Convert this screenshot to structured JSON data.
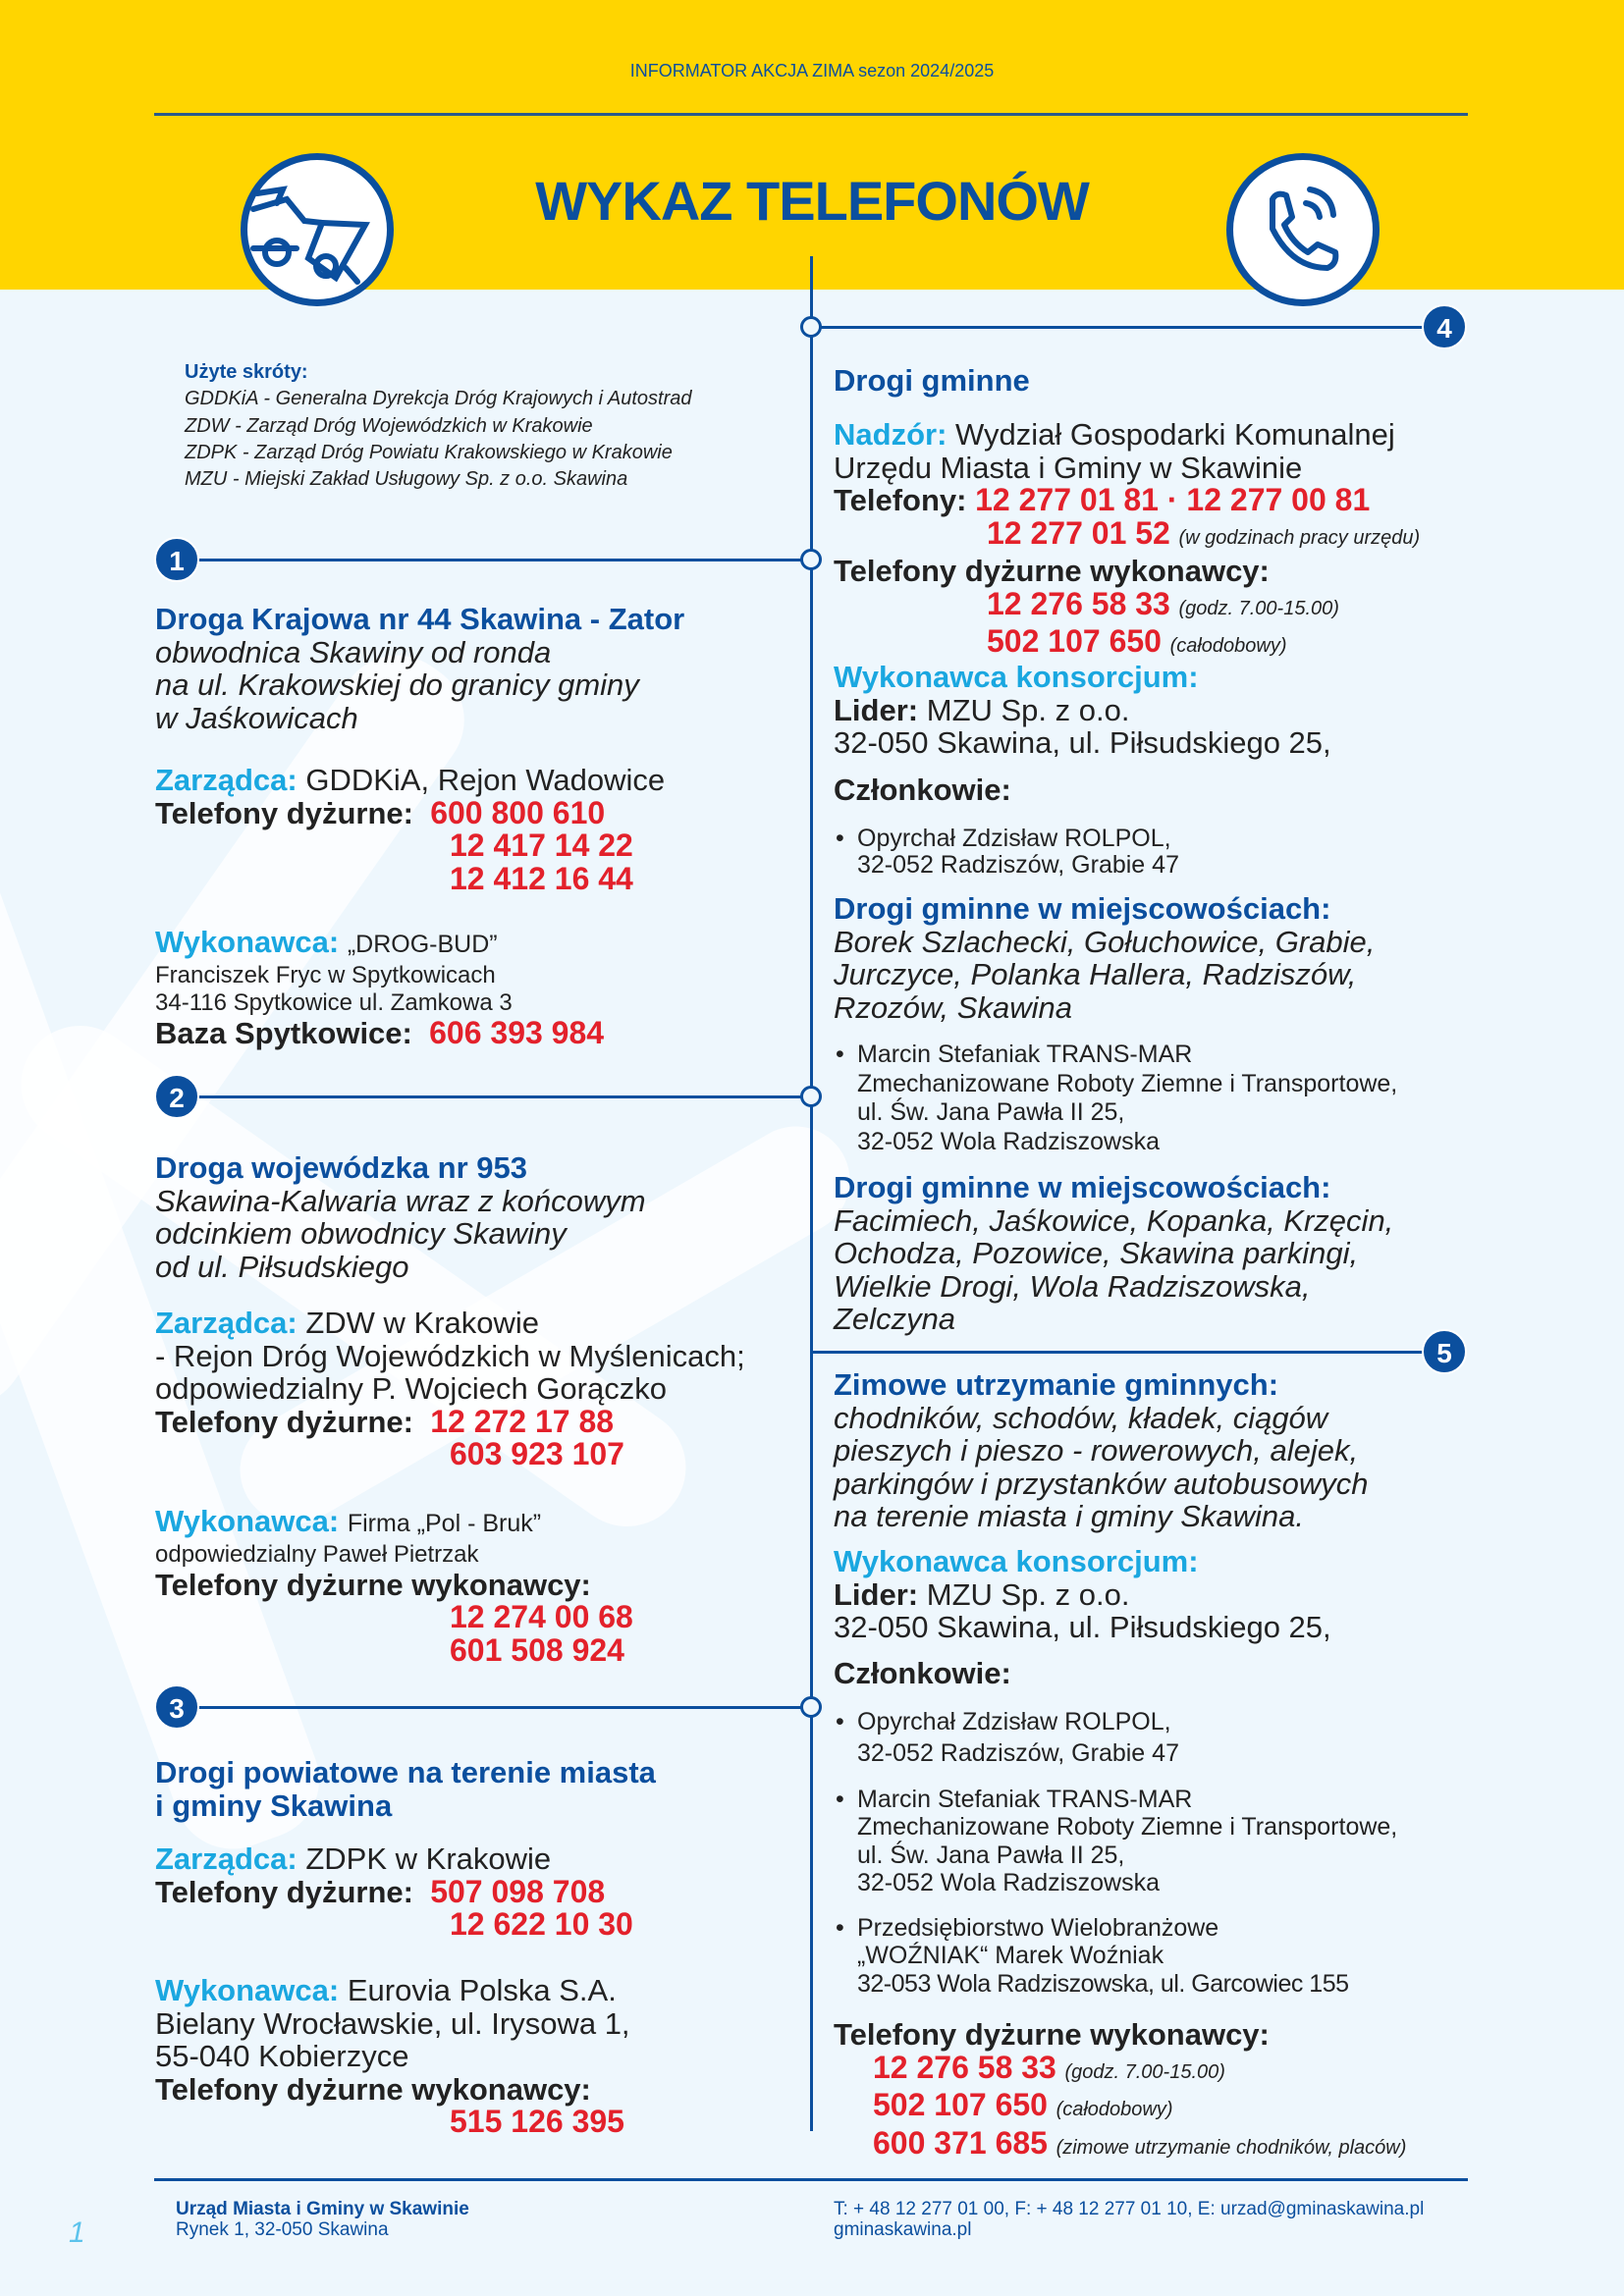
{
  "header": {
    "top_text": "INFORMATOR AKCJA ZIMA sezon 2024/2025",
    "title": "WYKAZ TELEFONÓW"
  },
  "colors": {
    "yellow": "#ffd500",
    "dark_blue": "#0b4f9e",
    "cyan": "#1aa7e0",
    "red": "#e3212b",
    "background": "#eef7fd"
  },
  "icons": {
    "left": "car-accident-icon",
    "right": "phone-ringing-icon"
  },
  "abbrev": {
    "title": "Użyte skróty:",
    "lines": [
      "GDDKiA - Generalna Dyrekcja Dróg Krajowych i Autostrad",
      "ZDW - Zarząd Dróg Wojewódzkich w Krakowie",
      "ZDPK - Zarząd Dróg Powiatu Krakowskiego w Krakowie",
      "MZU - Miejski Zakład Usługowy Sp. z o.o. Skawina"
    ]
  },
  "markers": [
    "1",
    "2",
    "3",
    "4",
    "5"
  ],
  "s1": {
    "title": "Droga Krajowa nr 44 Skawina - Zator",
    "desc": [
      "obwodnica Skawiny od ronda",
      "na ul. Krakowskiej  do granicy gminy",
      "w Jaśkowicach"
    ],
    "zarzadca_label": "Zarządca:",
    "zarzadca": "GDDKiA, Rejon Wadowice",
    "phones_label": "Telefony dyżurne:",
    "phones": [
      "600 800 610",
      "12 417 14 22",
      "12 412 16 44"
    ],
    "wyk_label": "Wykonawca:",
    "wyk": "„DROG-BUD”",
    "wyk_lines": [
      "Franciszek Fryc w Spytkowicach",
      "34-116 Spytkowice ul. Zamkowa 3"
    ],
    "baza_label": "Baza Spytkowice:",
    "baza_phone": "606 393 984"
  },
  "s2": {
    "title": "Droga wojewódzka nr 953",
    "desc": [
      "Skawina-Kalwaria wraz z końcowym",
      "odcinkiem obwodnicy Skawiny",
      "od ul. Piłsudskiego"
    ],
    "zarzadca_label": "Zarządca:",
    "zarzadca": "ZDW w Krakowie",
    "zarzadca_lines": [
      "- Rejon Dróg Wojewódzkich w Myślenicach;",
      "odpowiedzialny P. Wojciech Gorączko"
    ],
    "phones_label": "Telefony dyżurne:",
    "phones": [
      "12 272 17 88",
      "603 923 107"
    ],
    "wyk_label": "Wykonawca:",
    "wyk": "Firma „Pol - Bruk”",
    "wyk_line": "odpowiedzialny Paweł Pietrzak",
    "wyk_phones_label": "Telefony dyżurne wykonawcy:",
    "wyk_phones": [
      "12 274 00 68",
      "601 508 924"
    ]
  },
  "s3": {
    "title": [
      "Drogi powiatowe na terenie miasta",
      "i gminy Skawina"
    ],
    "zarzadca_label": "Zarządca:",
    "zarzadca": "ZDPK w Krakowie",
    "phones_label": "Telefony dyżurne:",
    "phones": [
      "507 098 708",
      "12 622 10 30"
    ],
    "wyk_label": "Wykonawca:",
    "wyk": "Eurovia Polska S.A.",
    "wyk_lines": [
      "Bielany Wrocławskie, ul. Irysowa 1,",
      "55-040 Kobierzyce"
    ],
    "wyk_phones_label": "Telefony dyżurne wykonawcy:",
    "wyk_phone": "515 126 395"
  },
  "s4": {
    "title": "Drogi gminne",
    "nadzor_label": "Nadzór:",
    "nadzor": "Wydział Gospodarki Komunalnej",
    "nadzor_line2": "Urzędu Miasta i Gminy w Skawinie",
    "phones_label": "Telefony:",
    "phones": "12 277 01 81 · 12 277 00 81",
    "phone3": "12 277 01 52",
    "phone3_note": "(w godzinach pracy urzędu)",
    "wyk_phones_label": "Telefony dyżurne wykonawcy:",
    "wyk_phone1": "12 276 58 33",
    "wyk_phone1_note": "(godz. 7.00-15.00)",
    "wyk_phone2": "502 107 650",
    "wyk_phone2_note": "(całodobowy)",
    "kons_label": "Wykonawca konsorcjum:",
    "lider_label": "Lider:",
    "lider": "MZU Sp. z o.o.",
    "lider_addr": "32-050 Skawina, ul. Piłsudskiego 25,",
    "czlonkowie": "Członkowie:",
    "member1": [
      "Opyrchał Zdzisław ROLPOL,",
      "32-052 Radziszów, Grabie 47"
    ],
    "area1_title": "Drogi gminne w miejscowościach:",
    "area1": [
      "Borek Szlachecki, Gołuchowice, Grabie,",
      "Jurczyce,  Polanka Hallera, Radziszów,",
      "Rzozów, Skawina"
    ],
    "member2": [
      "Marcin Stefaniak TRANS-MAR",
      "Zmechanizowane Roboty Ziemne i Transportowe,",
      "ul. Św. Jana Pawła II 25,",
      "32-052 Wola Radziszowska"
    ],
    "area2_title": "Drogi gminne w miejscowościach:",
    "area2": [
      "Facimiech, Jaśkowice, Kopanka, Krzęcin,",
      "Ochodza, Pozowice, Skawina parkingi,",
      "Wielkie Drogi, Wola Radziszowska,",
      "Zelczyna"
    ]
  },
  "s5": {
    "title": "Zimowe utrzymanie gminnych:",
    "desc": [
      "chodników, schodów, kładek, ciągów",
      "pieszych i pieszo - rowerowych, alejek,",
      "parkingów i przystanków autobusowych",
      "na terenie miasta i gminy Skawina."
    ],
    "kons_label": "Wykonawca konsorcjum:",
    "lider_label": "Lider:",
    "lider": "MZU Sp. z o.o.",
    "lider_addr": "32-050 Skawina, ul. Piłsudskiego 25,",
    "czlonkowie": "Członkowie:",
    "member1": [
      "Opyrchał Zdzisław ROLPOL,",
      "32-052 Radziszów, Grabie 47"
    ],
    "member2": [
      "Marcin Stefaniak TRANS-MAR",
      "Zmechanizowane Roboty Ziemne i Transportowe,",
      "ul. Św. Jana Pawła II 25,",
      "32-052 Wola Radziszowska"
    ],
    "member3": [
      "Przedsiębiorstwo Wielobranżowe",
      "„WOŹNIAK“ Marek Woźniak",
      "32-053 Wola Radziszowska, ul. Garcowiec 155"
    ],
    "wyk_phones_label": "Telefony dyżurne wykonawcy:",
    "phones": [
      {
        "n": "12 276 58 33",
        "note": "(godz. 7.00-15.00)"
      },
      {
        "n": "502 107 650",
        "note": "(całodobowy)"
      },
      {
        "n": "600 371 685",
        "note": "(zimowe utrzymanie chodników, placów)"
      }
    ]
  },
  "footer": {
    "org": "Urząd Miasta i Gminy w Skawinie",
    "address": "Rynek 1, 32-050 Skawina",
    "contact": "T: + 48 12 277 01 00, F: + 48 12 277 01 10, E: urzad@gminaskawina.pl",
    "website": "gminaskawina.pl",
    "page": "1"
  }
}
